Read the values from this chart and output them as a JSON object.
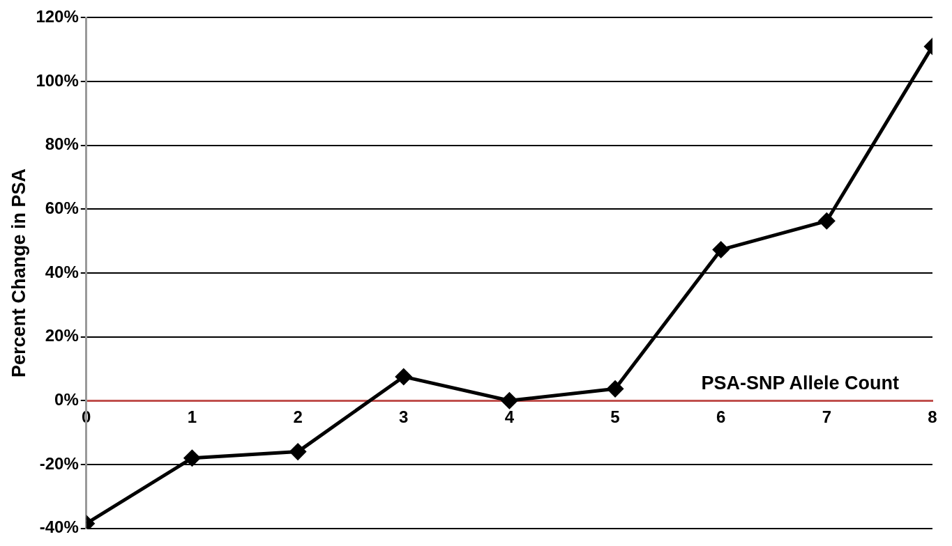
{
  "chart_data": {
    "type": "line",
    "xlabel": "PSA-SNP Allele Count",
    "ylabel": "Percent Change in PSA",
    "x": [
      0,
      1,
      2,
      3,
      4,
      5,
      6,
      7,
      8
    ],
    "series": [
      {
        "color": "#000000",
        "values": [
          -38.5,
          -18,
          -16,
          7.5,
          0,
          3.7,
          47.3,
          56.3,
          111
        ]
      }
    ],
    "xlim": [
      0,
      8
    ],
    "xticks": [
      0,
      1,
      2,
      3,
      4,
      5,
      6,
      7,
      8
    ],
    "ylim": [
      -40,
      120
    ],
    "yticks": [
      {
        "value": -40,
        "label": "-40%"
      },
      {
        "value": -20,
        "label": "-20%"
      },
      {
        "value": 0,
        "label": "0%"
      },
      {
        "value": 20,
        "label": "20%"
      },
      {
        "value": 40,
        "label": "40%"
      },
      {
        "value": 60,
        "label": "60%"
      },
      {
        "value": 80,
        "label": "80%"
      },
      {
        "value": 100,
        "label": "100%"
      },
      {
        "value": 120,
        "label": "120%"
      }
    ],
    "grid": "y",
    "legend": false,
    "marker": "diamond",
    "line_style": "solid"
  }
}
